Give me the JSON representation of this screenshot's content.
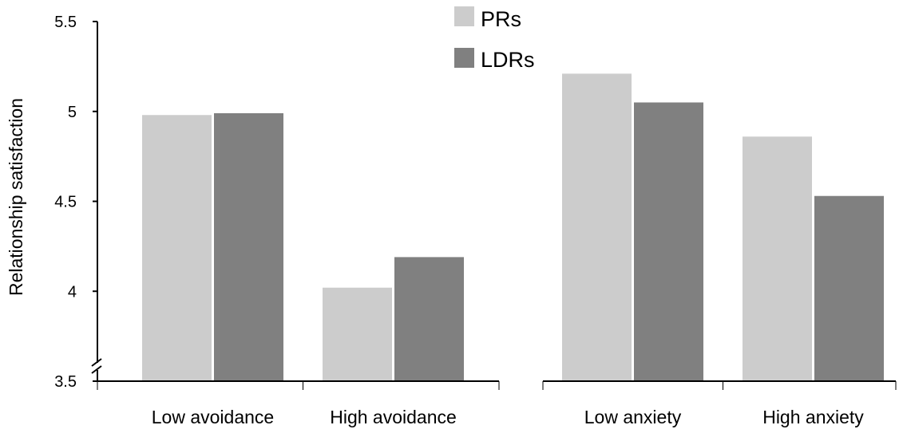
{
  "chart_data": {
    "type": "bar",
    "ylabel": "Relationship satisfaction",
    "ylim": [
      3.5,
      5.5
    ],
    "y_axis_break": true,
    "yticks": [
      {
        "value": 3.5,
        "label": "3.5"
      },
      {
        "value": 4,
        "label": "4"
      },
      {
        "value": 4.5,
        "label": "4.5"
      },
      {
        "value": 5,
        "label": "5"
      },
      {
        "value": 5.5,
        "label": "5.5"
      }
    ],
    "legend": {
      "placement": "top-center",
      "entries": [
        {
          "name": "PRs",
          "color": "#cccccc"
        },
        {
          "name": "LDRs",
          "color": "#808080"
        }
      ]
    },
    "series": [
      {
        "name": "PRs",
        "color": "#cccccc",
        "values": [
          4.98,
          4.02,
          5.21,
          4.86
        ]
      },
      {
        "name": "LDRs",
        "color": "#808080",
        "values": [
          4.99,
          4.19,
          5.05,
          4.53
        ]
      }
    ],
    "panels": [
      {
        "categories": [
          "Low avoidance",
          "High avoidance"
        ]
      },
      {
        "categories": [
          "Low anxiety",
          "High anxiety"
        ]
      }
    ],
    "grid": false
  }
}
